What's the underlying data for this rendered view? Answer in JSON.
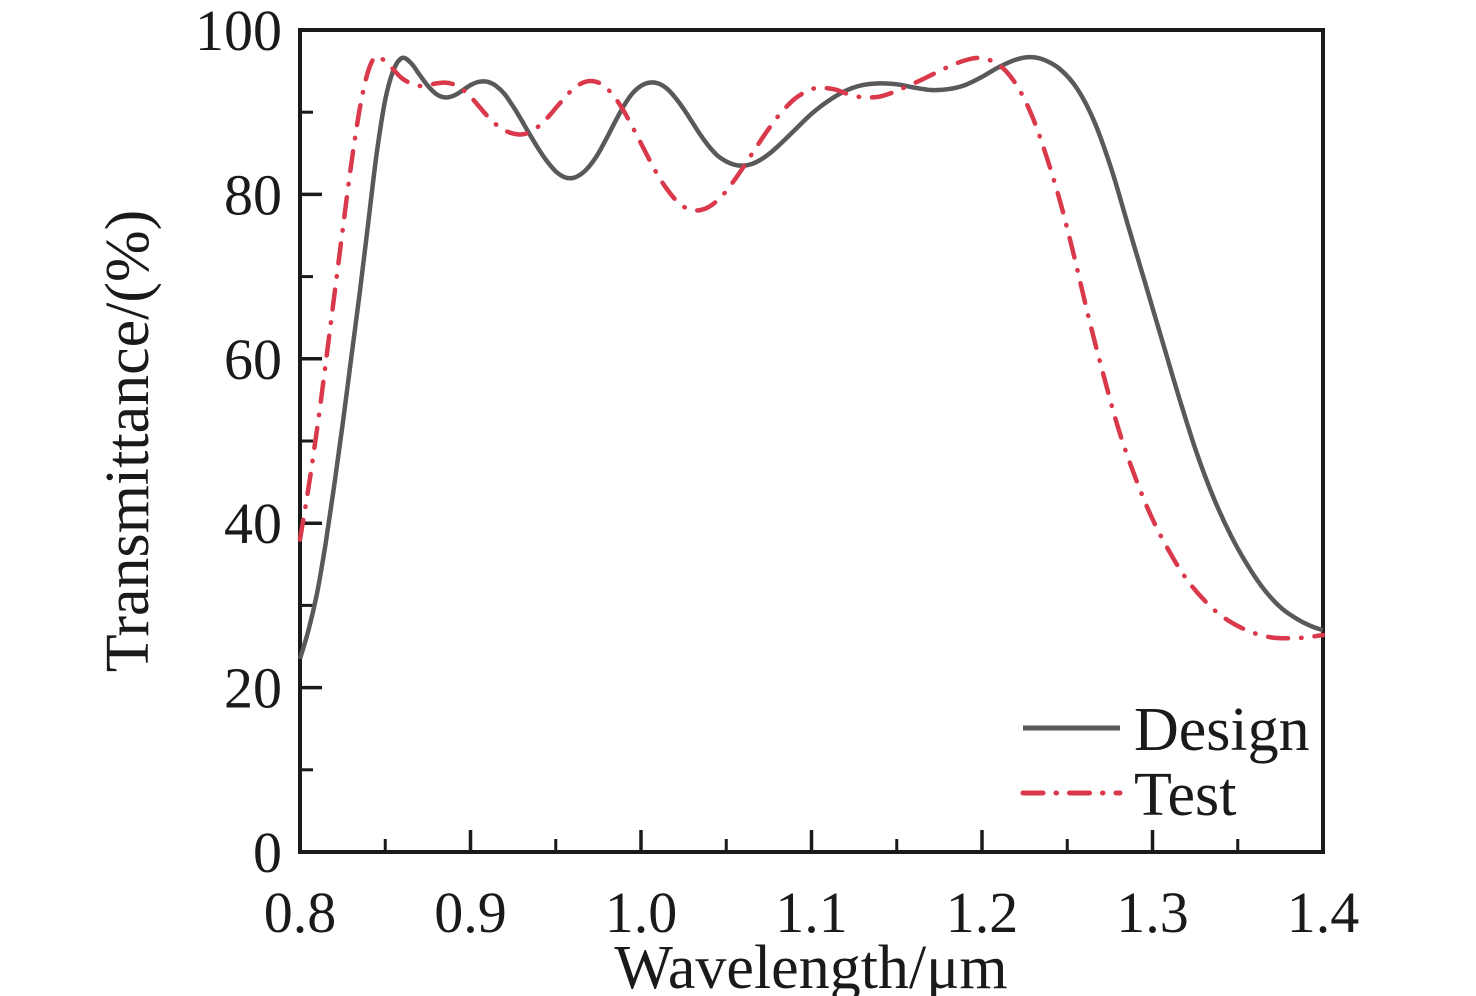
{
  "figure": {
    "background": "#ffffff",
    "axis_color": "#1a1a1a",
    "plot_border": "rectangular box, ticks inside on left and bottom only"
  },
  "chart_data": {
    "type": "line",
    "title": "",
    "xlabel": "Wavelength/μm",
    "ylabel": "Transmittance/(%)",
    "xlim": [
      0.8,
      1.4
    ],
    "ylim": [
      0,
      100
    ],
    "grid": false,
    "legend_position": "lower right inside plot",
    "xticks": {
      "major": [
        0.8,
        0.9,
        1.0,
        1.1,
        1.2,
        1.3,
        1.4
      ],
      "labels": [
        "0.8",
        "0.9",
        "1.0",
        "1.1",
        "1.2",
        "1.3",
        "1.4"
      ],
      "minor": [
        0.85,
        0.95,
        1.05,
        1.15,
        1.25,
        1.35
      ]
    },
    "yticks": {
      "major": [
        0,
        20,
        40,
        60,
        80,
        100
      ],
      "labels": [
        "0",
        "20",
        "40",
        "60",
        "80",
        "100"
      ],
      "minor": [
        10,
        30,
        50,
        70,
        90
      ]
    },
    "series": [
      {
        "name": "Design",
        "color": "#58595b",
        "style": "solid",
        "points": [
          [
            0.8,
            23.5
          ],
          [
            0.805,
            27.0
          ],
          [
            0.81,
            31.5
          ],
          [
            0.815,
            37.5
          ],
          [
            0.82,
            44.5
          ],
          [
            0.825,
            52.0
          ],
          [
            0.83,
            60.0
          ],
          [
            0.835,
            68.0
          ],
          [
            0.84,
            76.5
          ],
          [
            0.845,
            85.0
          ],
          [
            0.85,
            91.5
          ],
          [
            0.855,
            95.2
          ],
          [
            0.86,
            96.6
          ],
          [
            0.865,
            96.0
          ],
          [
            0.87,
            94.6
          ],
          [
            0.875,
            93.2
          ],
          [
            0.88,
            92.2
          ],
          [
            0.885,
            91.8
          ],
          [
            0.89,
            92.0
          ],
          [
            0.895,
            92.6
          ],
          [
            0.9,
            93.3
          ],
          [
            0.905,
            93.7
          ],
          [
            0.91,
            93.7
          ],
          [
            0.915,
            93.2
          ],
          [
            0.92,
            92.2
          ],
          [
            0.925,
            90.7
          ],
          [
            0.93,
            89.0
          ],
          [
            0.935,
            87.2
          ],
          [
            0.94,
            85.5
          ],
          [
            0.945,
            84.0
          ],
          [
            0.95,
            82.8
          ],
          [
            0.955,
            82.1
          ],
          [
            0.96,
            82.0
          ],
          [
            0.965,
            82.5
          ],
          [
            0.97,
            83.5
          ],
          [
            0.975,
            85.0
          ],
          [
            0.98,
            86.9
          ],
          [
            0.985,
            88.9
          ],
          [
            0.99,
            90.8
          ],
          [
            0.995,
            92.3
          ],
          [
            1.0,
            93.2
          ],
          [
            1.005,
            93.6
          ],
          [
            1.01,
            93.5
          ],
          [
            1.015,
            92.9
          ],
          [
            1.02,
            91.8
          ],
          [
            1.025,
            90.4
          ],
          [
            1.03,
            88.8
          ],
          [
            1.035,
            87.2
          ],
          [
            1.04,
            85.8
          ],
          [
            1.045,
            84.7
          ],
          [
            1.05,
            84.0
          ],
          [
            1.055,
            83.6
          ],
          [
            1.06,
            83.5
          ],
          [
            1.065,
            83.7
          ],
          [
            1.07,
            84.2
          ],
          [
            1.075,
            84.9
          ],
          [
            1.08,
            85.8
          ],
          [
            1.09,
            87.8
          ],
          [
            1.1,
            89.8
          ],
          [
            1.11,
            91.4
          ],
          [
            1.12,
            92.6
          ],
          [
            1.13,
            93.3
          ],
          [
            1.14,
            93.5
          ],
          [
            1.15,
            93.4
          ],
          [
            1.16,
            93.0
          ],
          [
            1.17,
            92.7
          ],
          [
            1.18,
            92.8
          ],
          [
            1.19,
            93.3
          ],
          [
            1.2,
            94.3
          ],
          [
            1.21,
            95.5
          ],
          [
            1.22,
            96.4
          ],
          [
            1.228,
            96.7
          ],
          [
            1.236,
            96.4
          ],
          [
            1.246,
            95.2
          ],
          [
            1.256,
            92.8
          ],
          [
            1.266,
            88.8
          ],
          [
            1.276,
            83.0
          ],
          [
            1.286,
            76.0
          ],
          [
            1.296,
            69.0
          ],
          [
            1.306,
            62.0
          ],
          [
            1.316,
            55.0
          ],
          [
            1.326,
            48.5
          ],
          [
            1.336,
            43.0
          ],
          [
            1.346,
            38.5
          ],
          [
            1.356,
            34.8
          ],
          [
            1.366,
            31.8
          ],
          [
            1.376,
            29.6
          ],
          [
            1.386,
            28.2
          ],
          [
            1.394,
            27.4
          ],
          [
            1.4,
            27.0
          ]
        ]
      },
      {
        "name": "Test",
        "color": "#d9394a",
        "style": "dash-dot",
        "points": [
          [
            0.8,
            38.0
          ],
          [
            0.804,
            43.0
          ],
          [
            0.808,
            48.5
          ],
          [
            0.812,
            54.5
          ],
          [
            0.816,
            61.0
          ],
          [
            0.82,
            67.5
          ],
          [
            0.824,
            74.0
          ],
          [
            0.828,
            80.5
          ],
          [
            0.832,
            86.5
          ],
          [
            0.836,
            91.5
          ],
          [
            0.84,
            95.0
          ],
          [
            0.844,
            96.7
          ],
          [
            0.848,
            96.5
          ],
          [
            0.852,
            95.8
          ],
          [
            0.856,
            94.9
          ],
          [
            0.86,
            94.1
          ],
          [
            0.865,
            93.5
          ],
          [
            0.87,
            93.2
          ],
          [
            0.875,
            93.3
          ],
          [
            0.88,
            93.5
          ],
          [
            0.885,
            93.6
          ],
          [
            0.89,
            93.4
          ],
          [
            0.895,
            92.8
          ],
          [
            0.9,
            91.9
          ],
          [
            0.905,
            90.7
          ],
          [
            0.91,
            89.5
          ],
          [
            0.915,
            88.5
          ],
          [
            0.92,
            87.8
          ],
          [
            0.925,
            87.4
          ],
          [
            0.93,
            87.3
          ],
          [
            0.935,
            87.6
          ],
          [
            0.94,
            88.3
          ],
          [
            0.945,
            89.3
          ],
          [
            0.95,
            90.5
          ],
          [
            0.955,
            91.7
          ],
          [
            0.96,
            92.8
          ],
          [
            0.965,
            93.5
          ],
          [
            0.97,
            93.8
          ],
          [
            0.975,
            93.6
          ],
          [
            0.98,
            92.9
          ],
          [
            0.985,
            91.7
          ],
          [
            0.99,
            90.1
          ],
          [
            0.995,
            88.2
          ],
          [
            1.0,
            86.2
          ],
          [
            1.005,
            84.2
          ],
          [
            1.01,
            82.3
          ],
          [
            1.015,
            80.7
          ],
          [
            1.02,
            79.4
          ],
          [
            1.025,
            78.5
          ],
          [
            1.03,
            78.1
          ],
          [
            1.035,
            78.1
          ],
          [
            1.04,
            78.5
          ],
          [
            1.045,
            79.3
          ],
          [
            1.05,
            80.4
          ],
          [
            1.055,
            81.8
          ],
          [
            1.06,
            83.3
          ],
          [
            1.065,
            84.9
          ],
          [
            1.07,
            86.5
          ],
          [
            1.075,
            88.0
          ],
          [
            1.08,
            89.4
          ],
          [
            1.085,
            90.6
          ],
          [
            1.09,
            91.6
          ],
          [
            1.095,
            92.3
          ],
          [
            1.1,
            92.8
          ],
          [
            1.105,
            93.0
          ],
          [
            1.11,
            92.9
          ],
          [
            1.115,
            92.7
          ],
          [
            1.12,
            92.3
          ],
          [
            1.125,
            92.0
          ],
          [
            1.13,
            91.8
          ],
          [
            1.135,
            91.8
          ],
          [
            1.14,
            91.9
          ],
          [
            1.145,
            92.2
          ],
          [
            1.15,
            92.6
          ],
          [
            1.16,
            93.5
          ],
          [
            1.17,
            94.5
          ],
          [
            1.18,
            95.5
          ],
          [
            1.19,
            96.3
          ],
          [
            1.198,
            96.6
          ],
          [
            1.206,
            96.2
          ],
          [
            1.214,
            95.0
          ],
          [
            1.222,
            92.7
          ],
          [
            1.23,
            89.2
          ],
          [
            1.238,
            84.5
          ],
          [
            1.246,
            79.0
          ],
          [
            1.254,
            72.5
          ],
          [
            1.262,
            65.5
          ],
          [
            1.27,
            59.0
          ],
          [
            1.28,
            51.5
          ],
          [
            1.29,
            45.5
          ],
          [
            1.3,
            40.5
          ],
          [
            1.31,
            36.5
          ],
          [
            1.32,
            33.2
          ],
          [
            1.33,
            30.7
          ],
          [
            1.34,
            28.8
          ],
          [
            1.35,
            27.5
          ],
          [
            1.36,
            26.6
          ],
          [
            1.37,
            26.1
          ],
          [
            1.38,
            26.0
          ],
          [
            1.39,
            26.1
          ],
          [
            1.4,
            26.4
          ]
        ]
      }
    ]
  }
}
